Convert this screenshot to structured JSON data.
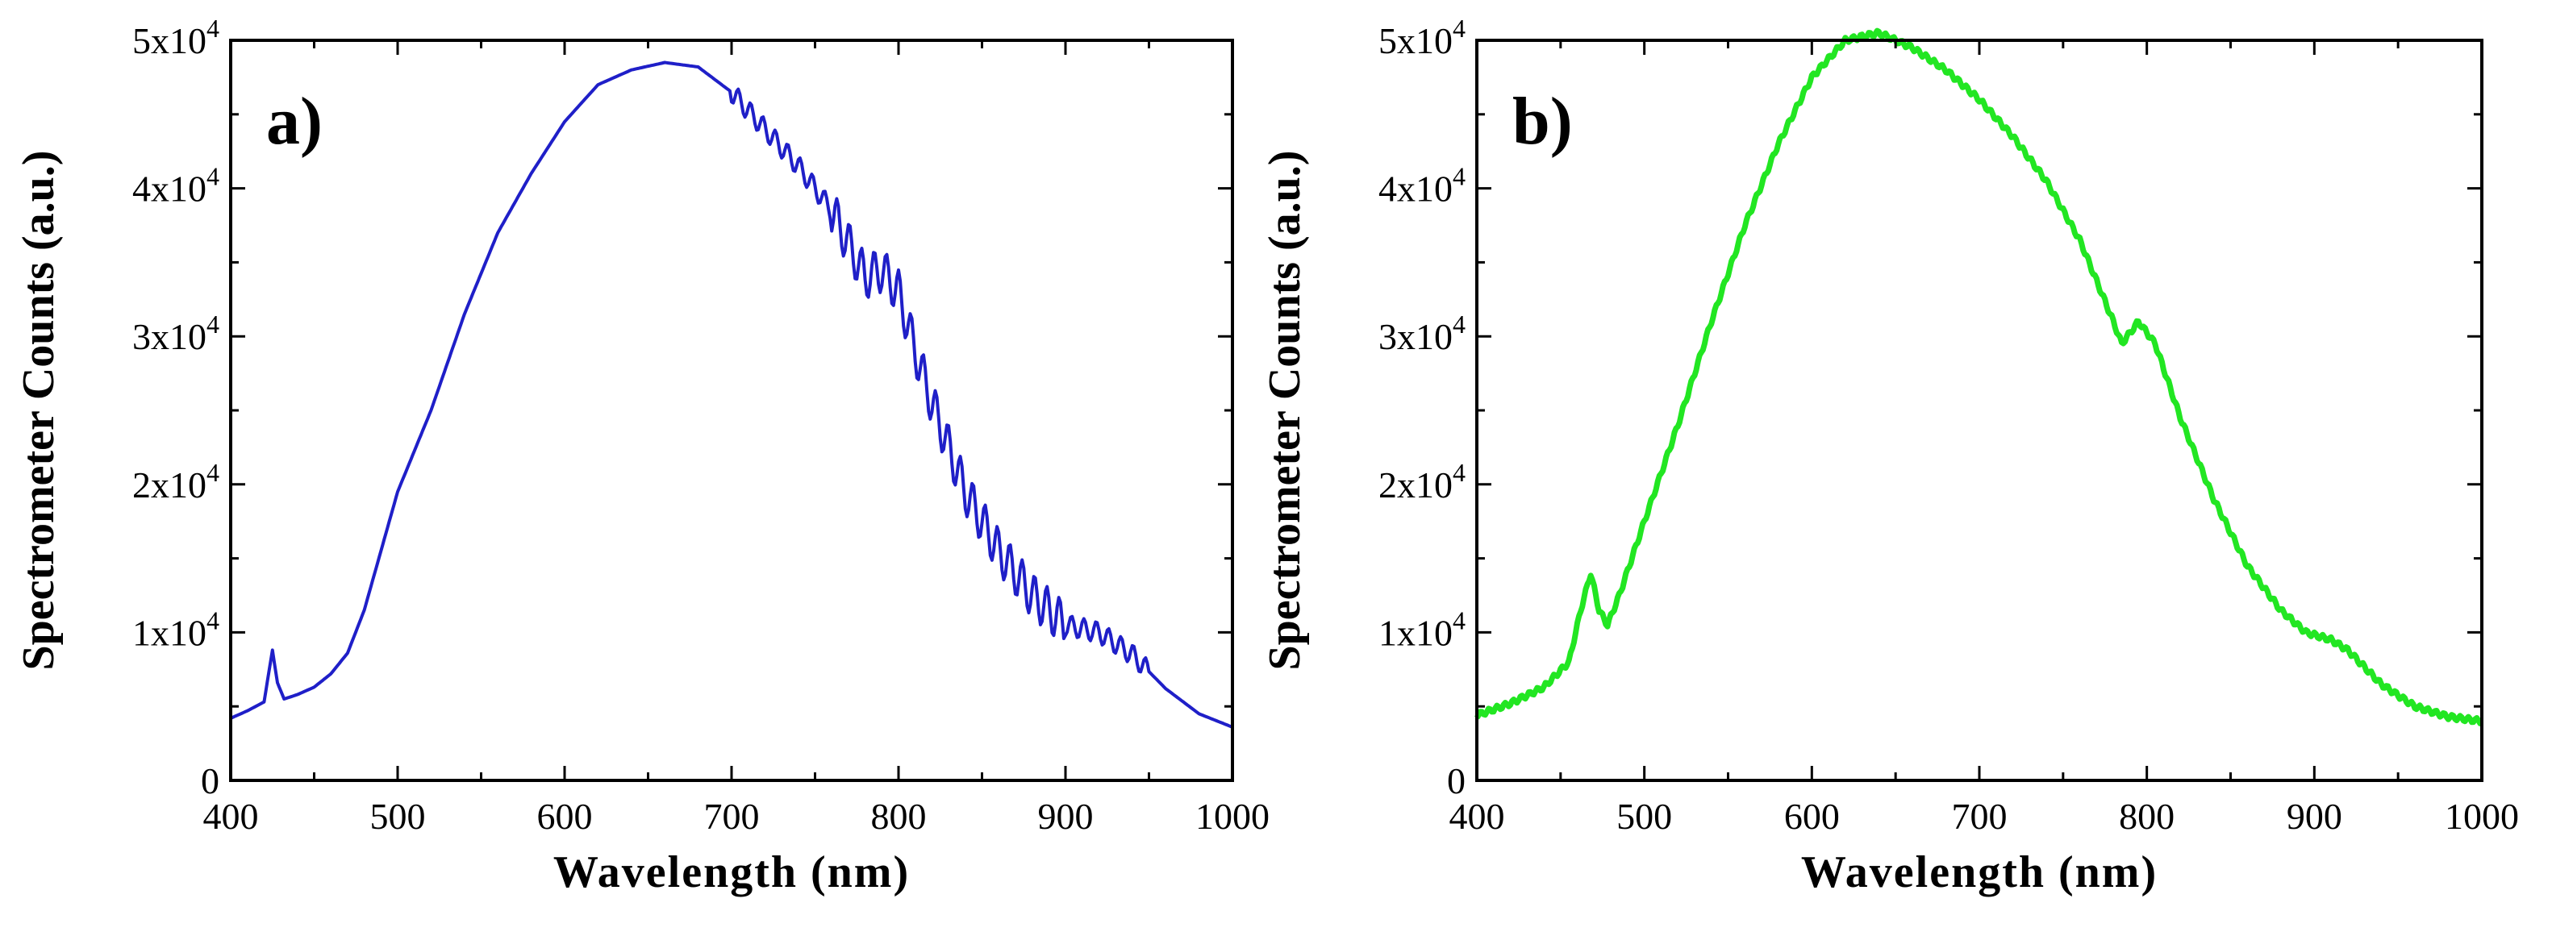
{
  "chart_data": [
    {
      "panel_label": "a)",
      "type": "line",
      "xlabel": "Wavelength (nm)",
      "ylabel": "Spectrometer Counts (a.u.)",
      "xlim": [
        400,
        1000
      ],
      "ylim": [
        0,
        50000
      ],
      "x_ticks": [
        "400",
        "500",
        "600",
        "700",
        "800",
        "900",
        "1000"
      ],
      "y_ticks": [
        {
          "mantissa": "0",
          "exp": ""
        },
        {
          "mantissa": "1x10",
          "exp": "4"
        },
        {
          "mantissa": "2x10",
          "exp": "4"
        },
        {
          "mantissa": "3x10",
          "exp": "4"
        },
        {
          "mantissa": "4x10",
          "exp": "4"
        },
        {
          "mantissa": "5x10",
          "exp": "4"
        }
      ],
      "grid": false,
      "color": "#1f1fc8",
      "series": [
        {
          "x": [
            400,
            410,
            420,
            425,
            428,
            432,
            440,
            450,
            460,
            470,
            480,
            490,
            500,
            520,
            540,
            560,
            580,
            600,
            620,
            640,
            660,
            680,
            700,
            720,
            740,
            760,
            780,
            790,
            800,
            810,
            820,
            840,
            860,
            880,
            900,
            920,
            940,
            960,
            980,
            1000
          ],
          "values": [
            4200,
            4700,
            5300,
            8800,
            6600,
            5500,
            5800,
            6300,
            7200,
            8600,
            11500,
            15500,
            19500,
            25000,
            31500,
            37000,
            41000,
            44500,
            47000,
            48000,
            48500,
            48200,
            46500,
            44000,
            41500,
            38500,
            34000,
            34500,
            33000,
            29000,
            25500,
            19500,
            15500,
            12500,
            10500,
            10000,
            8500,
            6200,
            4500,
            3600
          ]
        }
      ]
    },
    {
      "panel_label": "b)",
      "type": "line",
      "xlabel": "Wavelength (nm)",
      "ylabel": "Spectrometer Counts (a.u.)",
      "xlim": [
        400,
        1000
      ],
      "ylim": [
        0,
        50000
      ],
      "x_ticks": [
        "400",
        "500",
        "600",
        "700",
        "800",
        "900",
        "1000"
      ],
      "y_ticks": [
        {
          "mantissa": "0",
          "exp": ""
        },
        {
          "mantissa": "1x10",
          "exp": "4"
        },
        {
          "mantissa": "2x10",
          "exp": "4"
        },
        {
          "mantissa": "3x10",
          "exp": "4"
        },
        {
          "mantissa": "4x10",
          "exp": "4"
        },
        {
          "mantissa": "5x10",
          "exp": "4"
        }
      ],
      "grid": false,
      "color": "#22e622",
      "series": [
        {
          "x": [
            400,
            420,
            440,
            455,
            462,
            468,
            473,
            478,
            485,
            500,
            520,
            540,
            560,
            580,
            600,
            620,
            640,
            660,
            680,
            700,
            720,
            740,
            760,
            780,
            785,
            795,
            805,
            820,
            840,
            860,
            880,
            895,
            910,
            920,
            940,
            960,
            980,
            1000
          ],
          "values": [
            4400,
            5200,
            6300,
            8000,
            11500,
            14000,
            11500,
            10500,
            12500,
            17500,
            24000,
            31000,
            37500,
            43000,
            47500,
            50000,
            50500,
            49500,
            48000,
            46000,
            43500,
            40500,
            36500,
            31000,
            29500,
            31000,
            29500,
            24500,
            19000,
            14500,
            11500,
            10000,
            9500,
            8800,
            6500,
            5000,
            4300,
            4000
          ]
        }
      ]
    }
  ]
}
